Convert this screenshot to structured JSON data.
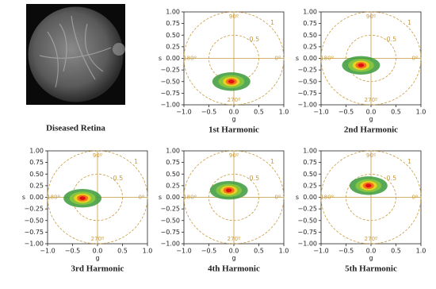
{
  "image": {
    "caption": "Diseased Retina"
  },
  "chart_data": [
    {
      "type": "phasor",
      "title": "1st Harmonic",
      "xlabel": "g",
      "ylabel": "s",
      "x": [
        -0.05
      ],
      "values": [
        -0.5
      ]
    },
    {
      "type": "phasor",
      "title": "2nd Harmonic",
      "xlabel": "g",
      "ylabel": "s",
      "x": [
        -0.2
      ],
      "values": [
        -0.15
      ]
    },
    {
      "type": "phasor",
      "title": "3rd Harmonic",
      "xlabel": "g",
      "ylabel": "s",
      "x": [
        -0.3
      ],
      "values": [
        -0.02
      ]
    },
    {
      "type": "phasor",
      "title": "4th Harmonic",
      "xlabel": "g",
      "ylabel": "s",
      "x": [
        -0.1
      ],
      "values": [
        0.15
      ]
    },
    {
      "type": "phasor",
      "title": "5th Harmonic",
      "xlabel": "g",
      "ylabel": "s",
      "x": [
        -0.05
      ],
      "values": [
        0.25
      ]
    }
  ],
  "axes": {
    "xlim": [
      -1,
      1
    ],
    "ylim": [
      -1,
      1
    ],
    "xticks": [
      {
        "value": -1,
        "label": "−1.0"
      },
      {
        "value": -0.5,
        "label": "−0.5"
      },
      {
        "value": 0,
        "label": "0.0"
      },
      {
        "value": 0.5,
        "label": "0.5"
      },
      {
        "value": 1,
        "label": "1.0"
      }
    ],
    "yticks": [
      {
        "value": -1,
        "label": "−1.00"
      },
      {
        "value": -0.75,
        "label": "−0.75"
      },
      {
        "value": -0.5,
        "label": "−0.50"
      },
      {
        "value": -0.25,
        "label": "−0.25"
      },
      {
        "value": 0,
        "label": "0.00"
      },
      {
        "value": 0.25,
        "label": "0.25"
      },
      {
        "value": 0.5,
        "label": "0.50"
      },
      {
        "value": 0.75,
        "label": "0.75"
      },
      {
        "value": 1,
        "label": "1.00"
      }
    ],
    "circles": [
      1,
      0.5
    ],
    "angle_labels": [
      {
        "value": 90,
        "label": "90º"
      },
      {
        "value": 180,
        "label": "180º"
      },
      {
        "value": 0,
        "label": "0º"
      },
      {
        "value": 270,
        "label": "270º"
      }
    ],
    "reference_color": "#c99a3c"
  }
}
